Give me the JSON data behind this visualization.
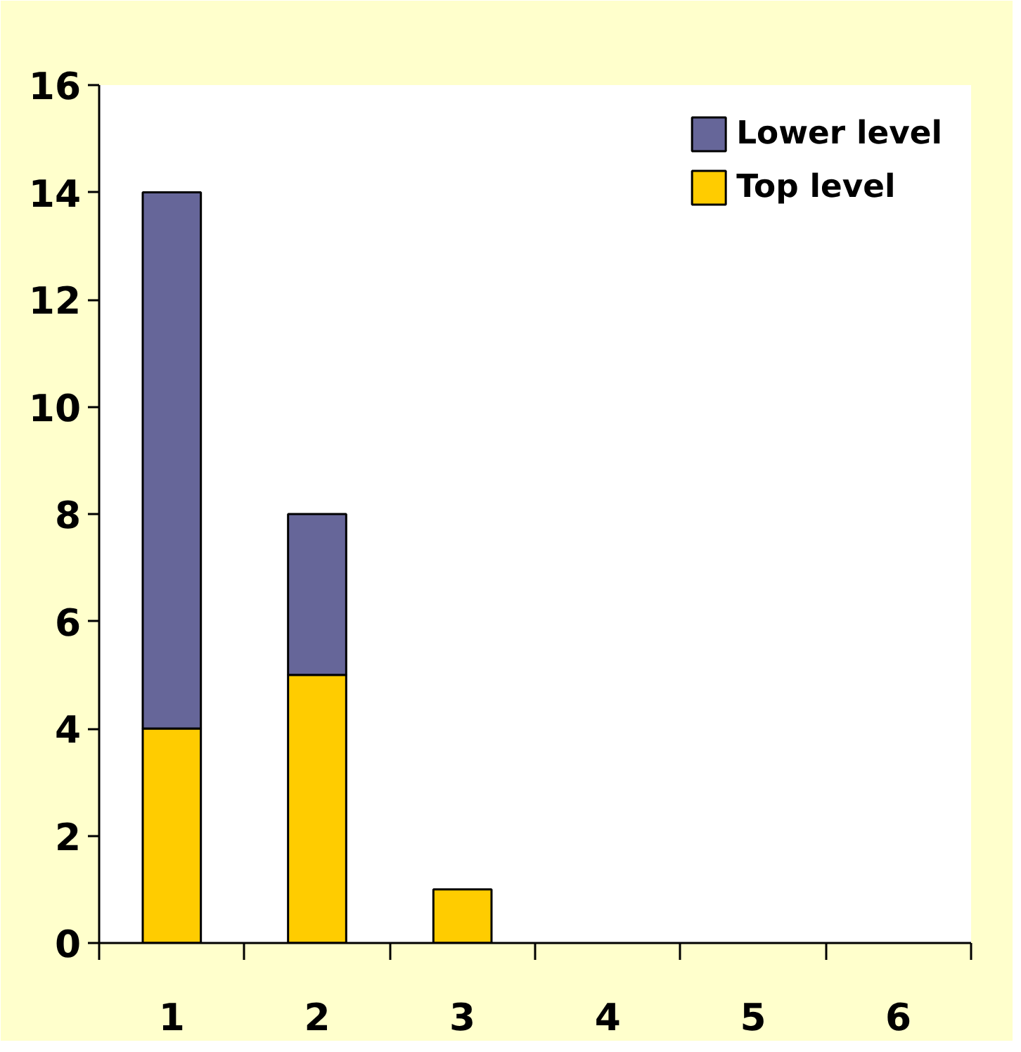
{
  "chart_data": {
    "type": "bar",
    "stacked": true,
    "categories": [
      "1",
      "2",
      "3",
      "4",
      "5",
      "6"
    ],
    "series": [
      {
        "name": "Top level",
        "color": "#ffcc00",
        "values": [
          4,
          5,
          1,
          0,
          0,
          0
        ]
      },
      {
        "name": "Lower level",
        "color": "#666699",
        "values": [
          10,
          3,
          0,
          0,
          0,
          0
        ]
      }
    ],
    "ylim": [
      0,
      16
    ],
    "yticks": [
      0,
      2,
      4,
      6,
      8,
      10,
      12,
      14,
      16
    ],
    "grid": false,
    "legend": "top right"
  }
}
